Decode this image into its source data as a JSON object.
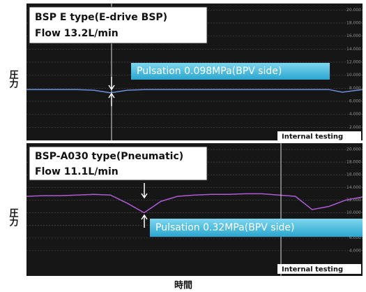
{
  "chart_data": [
    {
      "type": "line",
      "title": "BSP E type(E-drive BSP)",
      "subtitle": "Flow  13.2L/min",
      "annotation": "Pulsation  0.098MPa(BPV side)",
      "note": "Internal testing",
      "ylabel": "圧力",
      "x": [
        0,
        5,
        10,
        15,
        20,
        25,
        30,
        35,
        40,
        45,
        50,
        55,
        60,
        65,
        70,
        75,
        80,
        85,
        90,
        94,
        100
      ],
      "values": [
        7.8,
        7.8,
        7.8,
        7.8,
        7.7,
        7.3,
        7.7,
        7.8,
        7.8,
        7.8,
        7.8,
        7.8,
        7.8,
        7.8,
        7.8,
        7.8,
        7.8,
        7.8,
        7.8,
        7.4,
        7.8
      ],
      "color": "#6f8fe0",
      "xlim": [
        0,
        100
      ],
      "ylim": [
        0,
        21
      ],
      "grid": true,
      "yticks": [
        {
          "value": 20,
          "label": "20.000"
        },
        {
          "value": 18,
          "label": "18.000"
        },
        {
          "value": 16,
          "label": "16.000"
        },
        {
          "value": 14,
          "label": "14.000"
        },
        {
          "value": 12,
          "label": "12.000"
        },
        {
          "value": 10,
          "label": "10.000"
        },
        {
          "value": 8,
          "label": "8.000"
        },
        {
          "value": 6,
          "label": "6.000"
        },
        {
          "value": 4,
          "label": "4.000"
        },
        {
          "value": 2,
          "label": "2.000"
        }
      ]
    },
    {
      "type": "line",
      "title": "BSP-A030 type(Pneumatic)",
      "subtitle": "Flow  11.1L/min",
      "annotation": "Pulsation  0.32MPa(BPV side)",
      "note": "Internal testing",
      "ylabel": "圧力",
      "x": [
        0,
        5,
        10,
        15,
        20,
        25,
        30,
        35,
        40,
        45,
        50,
        55,
        60,
        65,
        70,
        75,
        80,
        85,
        90,
        95,
        100
      ],
      "values": [
        12.6,
        12.7,
        12.7,
        12.8,
        12.9,
        12.8,
        11.5,
        10.0,
        11.8,
        12.6,
        12.8,
        12.9,
        12.9,
        13.0,
        13.0,
        12.8,
        12.6,
        10.5,
        11.0,
        12.0,
        12.5
      ],
      "color": "#b05ad8",
      "xlim": [
        0,
        100
      ],
      "ylim": [
        0,
        21
      ],
      "grid": true,
      "yticks": [
        {
          "value": 20,
          "label": "20.000"
        },
        {
          "value": 18,
          "label": "18.000"
        },
        {
          "value": 16,
          "label": "16.000"
        },
        {
          "value": 14,
          "label": "14.000"
        },
        {
          "value": 12,
          "label": "12.000"
        },
        {
          "value": 10,
          "label": "10.000"
        },
        {
          "value": 8,
          "label": "8.000"
        },
        {
          "value": 6,
          "label": "6.000"
        },
        {
          "value": 4,
          "label": "4.000"
        }
      ]
    }
  ],
  "xlabel": "時間"
}
